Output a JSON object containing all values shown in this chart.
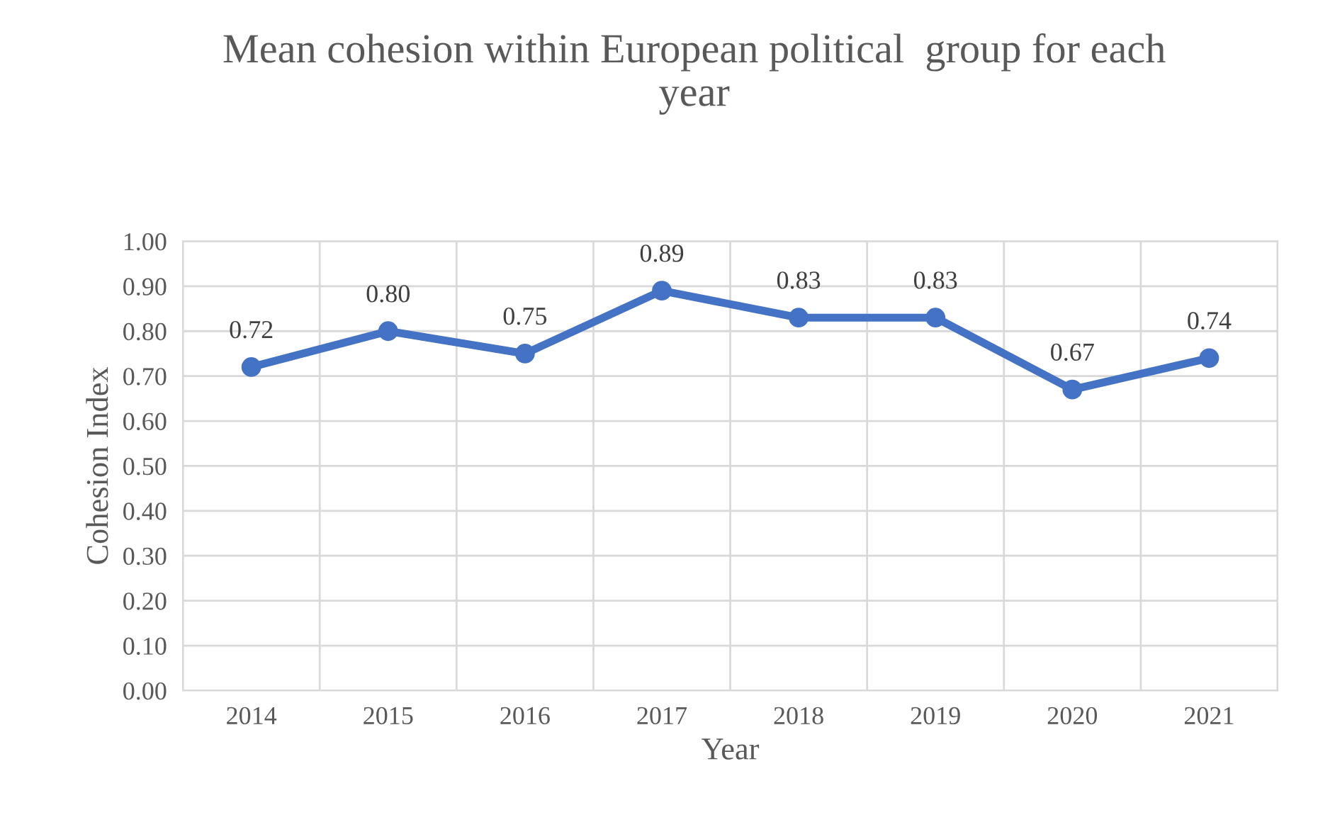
{
  "chart_data": {
    "type": "line",
    "title": "Mean cohesion within European political  group for each\nyear",
    "xlabel": "Year",
    "ylabel": "Cohesion Index",
    "categories": [
      "2014",
      "2015",
      "2016",
      "2017",
      "2018",
      "2019",
      "2020",
      "2021"
    ],
    "series": [
      {
        "color": "#4472c4",
        "values": [
          0.72,
          0.8,
          0.75,
          0.89,
          0.83,
          0.83,
          0.67,
          0.74
        ],
        "value_labels": [
          "0.72",
          "0.80",
          "0.75",
          "0.89",
          "0.83",
          "0.83",
          "0.67",
          "0.74"
        ]
      }
    ],
    "ylim": [
      0,
      1
    ],
    "yticks": [
      {
        "value": 0,
        "label": "0.00"
      },
      {
        "value": 0.1,
        "label": "0.10"
      },
      {
        "value": 0.2,
        "label": "0.20"
      },
      {
        "value": 0.3,
        "label": "0.30"
      },
      {
        "value": 0.4,
        "label": "0.40"
      },
      {
        "value": 0.5,
        "label": "0.50"
      },
      {
        "value": 0.6,
        "label": "0.60"
      },
      {
        "value": 0.7,
        "label": "0.70"
      },
      {
        "value": 0.8,
        "label": "0.80"
      },
      {
        "value": 0.9,
        "label": "0.90"
      },
      {
        "value": 1,
        "label": "1.00"
      }
    ],
    "grid": true,
    "marker": "circle",
    "line_style": "solid"
  }
}
